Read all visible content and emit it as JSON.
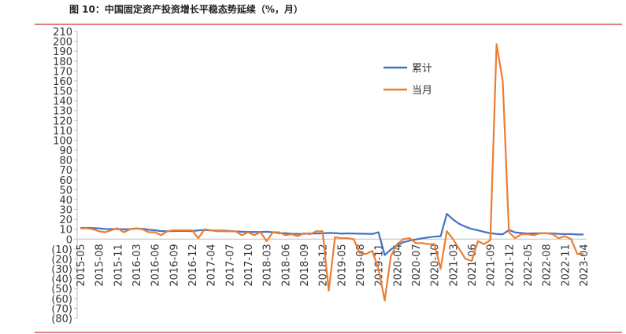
{
  "chart_data": {
    "type": "line",
    "title": "图 10：中国固定资产投资增长平稳态势延续（%，月）",
    "categories": [
      "2015-05",
      null,
      null,
      "2015-08",
      null,
      null,
      "2015-11",
      null,
      null,
      "2016-03",
      null,
      null,
      "2016-06",
      null,
      null,
      "2016-09",
      null,
      null,
      "2016-12",
      null,
      null,
      "2017-04",
      null,
      null,
      "2017-07",
      null,
      null,
      "2017-10",
      null,
      null,
      "2018-03",
      null,
      null,
      "2018-06",
      null,
      null,
      "2018-09",
      null,
      null,
      "2018-12",
      null,
      null,
      "2019-05",
      null,
      null,
      "2019-08",
      null,
      null,
      "2019-11",
      null,
      null,
      "2020-04",
      null,
      null,
      "2020-07",
      null,
      null,
      "2020-10",
      null,
      null,
      "2021-03",
      null,
      null,
      "2021-06",
      null,
      null,
      "2021-09",
      null,
      null,
      "2021-12",
      null,
      null,
      "2022-05",
      null,
      null,
      "2022-08",
      null,
      null,
      "2022-11",
      null,
      null,
      "2023-04"
    ],
    "series": [
      {
        "name": "累计",
        "color": "#4472c4",
        "values": [
          11.4,
          11.4,
          11.2,
          10.9,
          10.3,
          10.2,
          10.2,
          10.0,
          10.2,
          10.7,
          10.5,
          9.6,
          9.0,
          8.1,
          8.1,
          8.2,
          8.3,
          8.3,
          8.1,
          8.9,
          9.2,
          8.9,
          8.6,
          8.6,
          8.3,
          7.8,
          7.5,
          7.3,
          7.2,
          7.2,
          7.5,
          7.0,
          6.1,
          6.0,
          5.5,
          5.3,
          5.4,
          5.7,
          5.7,
          5.9,
          6.3,
          6.1,
          5.6,
          5.8,
          5.7,
          5.5,
          5.4,
          5.2,
          7.0,
          -16.1,
          -10.3,
          -6.3,
          -3.1,
          -1.6,
          -0.3,
          0.8,
          1.8,
          2.6,
          2.9,
          25.6,
          19.9,
          15.4,
          12.6,
          10.3,
          8.9,
          7.3,
          6.1,
          5.2,
          4.9,
          9.3,
          6.8,
          6.2,
          5.7,
          5.8,
          5.9,
          5.9,
          5.8,
          5.3,
          5.1,
          5.1,
          4.7,
          4.7
        ]
      },
      {
        "name": "当月",
        "color": "#ed7d31",
        "values": [
          11,
          11,
          10,
          8,
          7,
          9,
          11,
          7,
          10,
          11,
          10,
          7,
          7,
          4,
          8,
          9,
          9,
          9,
          9,
          1,
          10,
          9,
          8,
          8,
          8,
          8,
          4,
          7,
          4,
          7,
          -2,
          7,
          7,
          4,
          5,
          3,
          6,
          5,
          8,
          8,
          -52,
          2,
          1,
          1,
          0,
          -14,
          -15,
          -12,
          -30,
          -62,
          -17,
          -5,
          0,
          1,
          -4,
          -4,
          -5,
          -5,
          -30,
          8,
          0,
          -10,
          -20,
          -22,
          -2,
          -5,
          -1,
          197,
          160,
          7,
          1,
          5,
          5,
          4,
          6,
          6,
          5,
          1,
          3,
          0,
          -15,
          -15
        ]
      }
    ],
    "ylim": [
      -80,
      210
    ],
    "yticks": [
      {
        "value": -80,
        "label": "(80)"
      },
      {
        "value": -70,
        "label": "(70)"
      },
      {
        "value": -60,
        "label": "(60)"
      },
      {
        "value": -50,
        "label": "(50)"
      },
      {
        "value": -40,
        "label": "(40)"
      },
      {
        "value": -30,
        "label": "(30)"
      },
      {
        "value": -20,
        "label": "(20)"
      },
      {
        "value": -10,
        "label": "(10)"
      },
      0,
      10,
      20,
      30,
      40,
      50,
      60,
      70,
      80,
      90,
      100,
      110,
      120,
      130,
      140,
      150,
      160,
      170,
      180,
      190,
      200,
      210
    ],
    "grid": false
  }
}
